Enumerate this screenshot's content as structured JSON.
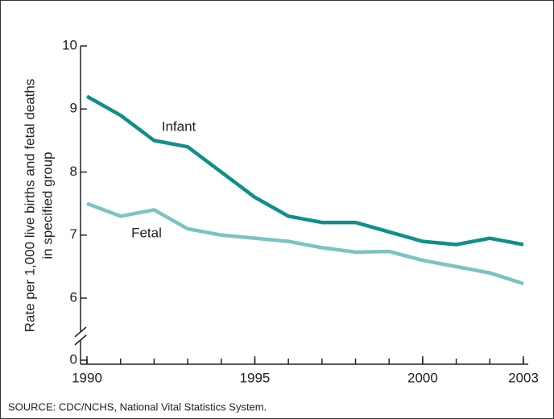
{
  "chart_data": {
    "type": "line",
    "ylabel": [
      "Rate per 1,000 live births and fetal deaths",
      "in specified group"
    ],
    "source": "SOURCE: CDC/NCHS, National Vital Statistics System.",
    "x": [
      1990,
      1991,
      1992,
      1993,
      1994,
      1995,
      1996,
      1997,
      1998,
      1999,
      2000,
      2001,
      2002,
      2003
    ],
    "xlim": [
      1990,
      2003
    ],
    "xticks": [
      1990,
      1995,
      2000,
      2003
    ],
    "ylim": [
      6,
      10
    ],
    "yticks": [
      0,
      6,
      7,
      8,
      9,
      10
    ],
    "axis_break": true,
    "series": [
      {
        "name": "Infant",
        "color": "#0f8f8a",
        "values": [
          9.2,
          8.9,
          8.5,
          8.4,
          8.0,
          7.6,
          7.3,
          7.2,
          7.2,
          7.05,
          6.9,
          6.85,
          6.95,
          6.85
        ]
      },
      {
        "name": "Fetal",
        "color": "#7cc3c2",
        "values": [
          7.5,
          7.3,
          7.4,
          7.1,
          7.0,
          6.95,
          6.9,
          6.8,
          6.73,
          6.74,
          6.6,
          6.5,
          6.4,
          6.23
        ]
      }
    ]
  }
}
